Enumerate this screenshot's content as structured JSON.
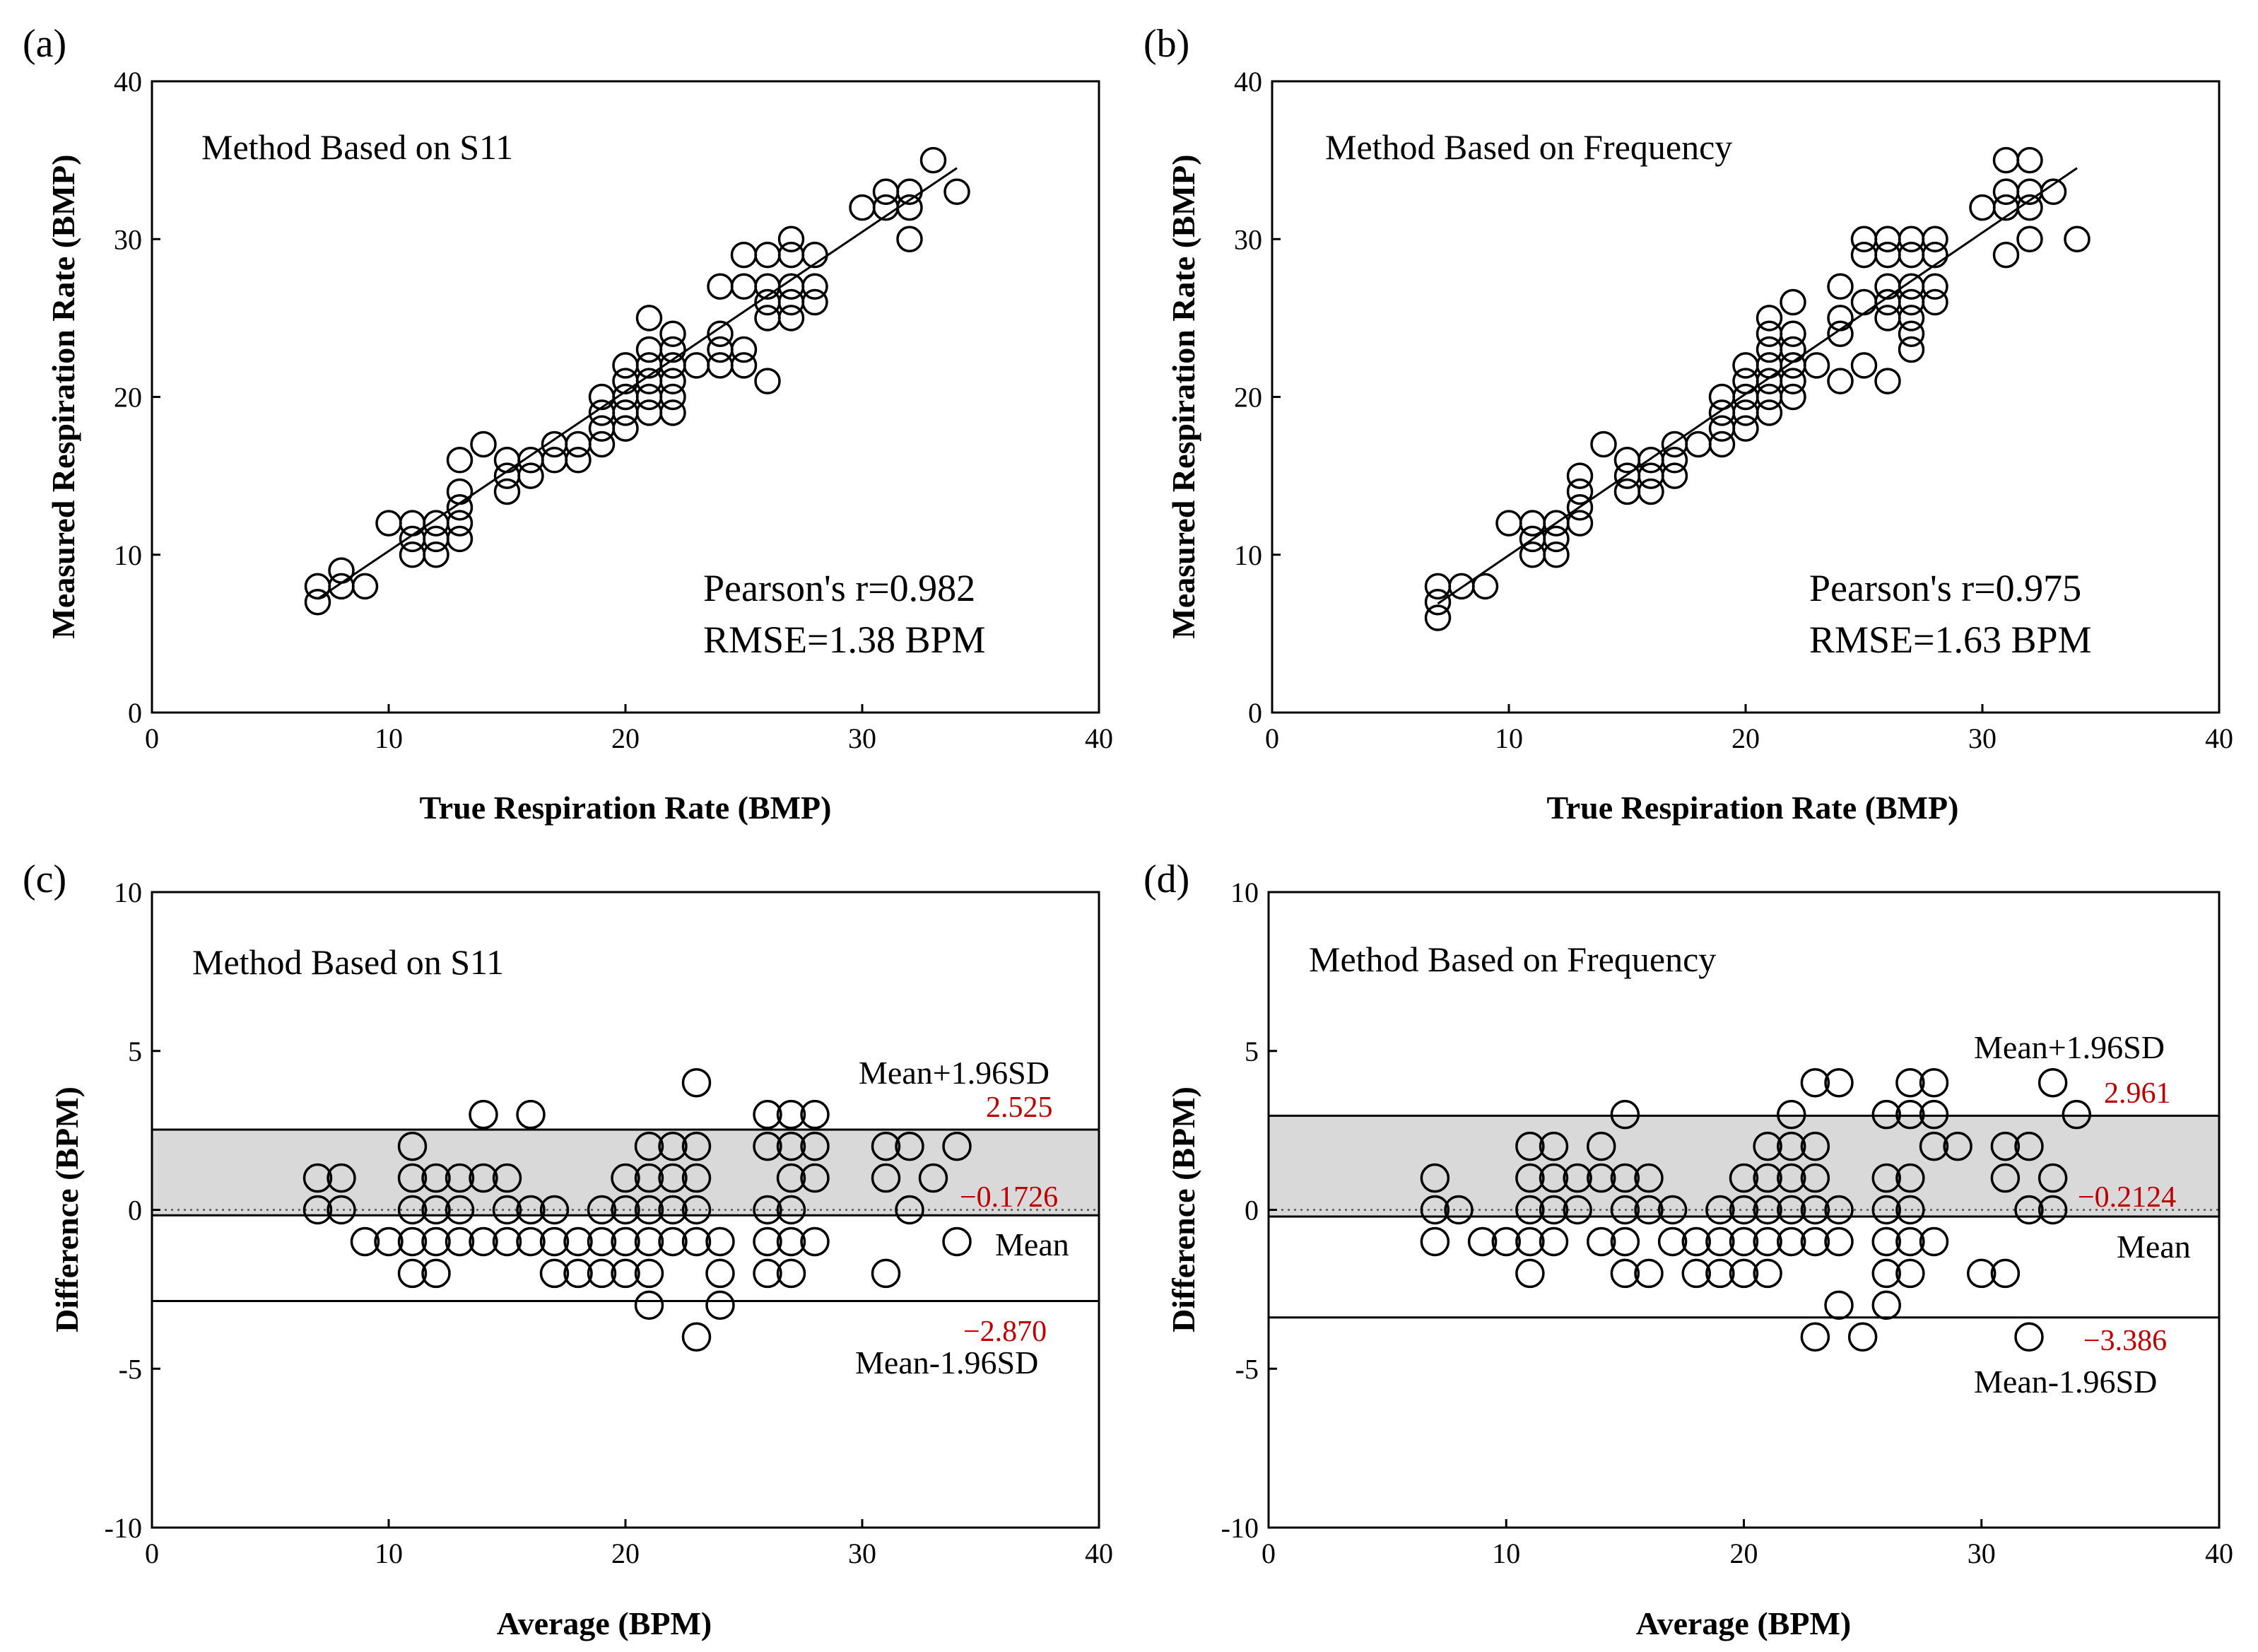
{
  "chart_data": [
    {
      "id": "a",
      "type": "scatter",
      "panel_label": "(a)",
      "title": "Method Based on S11",
      "xlabel": "True Respiration Rate (BMP)",
      "ylabel": "Measured Respiration Rate (BMP)",
      "xlim": [
        0,
        40
      ],
      "ylim": [
        0,
        40
      ],
      "xticks": [
        0,
        10,
        20,
        30,
        40
      ],
      "yticks": [
        0,
        10,
        20,
        30,
        40
      ],
      "stats": [
        "Pearson's r=0.982",
        "RMSE=1.38 BPM"
      ],
      "fit_line": [
        [
          7,
          7.2
        ],
        [
          34,
          34.5
        ]
      ],
      "points": [
        [
          7,
          8
        ],
        [
          7,
          7
        ],
        [
          8,
          9
        ],
        [
          8,
          8
        ],
        [
          9,
          8
        ],
        [
          10,
          12
        ],
        [
          11,
          12
        ],
        [
          11,
          11
        ],
        [
          11,
          10
        ],
        [
          12,
          12
        ],
        [
          12,
          11
        ],
        [
          12,
          10
        ],
        [
          13,
          16
        ],
        [
          13,
          14
        ],
        [
          13,
          13
        ],
        [
          13,
          12
        ],
        [
          13,
          11
        ],
        [
          14,
          17
        ],
        [
          15,
          16
        ],
        [
          15,
          15
        ],
        [
          15,
          14
        ],
        [
          16,
          16
        ],
        [
          16,
          15
        ],
        [
          17,
          17
        ],
        [
          17,
          16
        ],
        [
          18,
          17
        ],
        [
          18,
          16
        ],
        [
          19,
          20
        ],
        [
          19,
          19
        ],
        [
          19,
          18
        ],
        [
          19,
          17
        ],
        [
          20,
          22
        ],
        [
          20,
          21
        ],
        [
          20,
          20
        ],
        [
          20,
          19
        ],
        [
          20,
          18
        ],
        [
          21,
          25
        ],
        [
          21,
          23
        ],
        [
          21,
          22
        ],
        [
          21,
          21
        ],
        [
          21,
          20
        ],
        [
          21,
          19
        ],
        [
          22,
          24
        ],
        [
          22,
          23
        ],
        [
          22,
          22
        ],
        [
          22,
          21
        ],
        [
          22,
          20
        ],
        [
          22,
          19
        ],
        [
          23,
          22
        ],
        [
          24,
          27
        ],
        [
          24,
          24
        ],
        [
          24,
          23
        ],
        [
          24,
          22
        ],
        [
          25,
          29
        ],
        [
          25,
          27
        ],
        [
          25,
          23
        ],
        [
          25,
          22
        ],
        [
          26,
          29
        ],
        [
          26,
          27
        ],
        [
          26,
          26
        ],
        [
          26,
          25
        ],
        [
          26,
          21
        ],
        [
          27,
          30
        ],
        [
          27,
          29
        ],
        [
          27,
          27
        ],
        [
          27,
          26
        ],
        [
          27,
          25
        ],
        [
          28,
          29
        ],
        [
          28,
          27
        ],
        [
          28,
          26
        ],
        [
          30,
          32
        ],
        [
          31,
          33
        ],
        [
          31,
          32
        ],
        [
          32,
          33
        ],
        [
          32,
          32
        ],
        [
          32,
          30
        ],
        [
          33,
          35
        ],
        [
          34,
          33
        ]
      ]
    },
    {
      "id": "b",
      "type": "scatter",
      "panel_label": "(b)",
      "title": "Method Based on Frequency",
      "xlabel": "True Respiration Rate (BMP)",
      "ylabel": "Measured Respiration Rate (BMP)",
      "xlim": [
        0,
        40
      ],
      "ylim": [
        0,
        40
      ],
      "xticks": [
        0,
        10,
        20,
        30,
        40
      ],
      "yticks": [
        0,
        10,
        20,
        30,
        40
      ],
      "stats": [
        "Pearson's r=0.975",
        "RMSE=1.63 BPM"
      ],
      "fit_line": [
        [
          7,
          6.9
        ],
        [
          34,
          34.5
        ]
      ],
      "points": [
        [
          7,
          8
        ],
        [
          7,
          7
        ],
        [
          7,
          6
        ],
        [
          8,
          8
        ],
        [
          9,
          8
        ],
        [
          10,
          12
        ],
        [
          11,
          12
        ],
        [
          11,
          11
        ],
        [
          11,
          10
        ],
        [
          12,
          12
        ],
        [
          12,
          11
        ],
        [
          12,
          10
        ],
        [
          13,
          15
        ],
        [
          13,
          14
        ],
        [
          13,
          13
        ],
        [
          13,
          12
        ],
        [
          14,
          17
        ],
        [
          15,
          16
        ],
        [
          15,
          15
        ],
        [
          15,
          14
        ],
        [
          16,
          16
        ],
        [
          16,
          15
        ],
        [
          16,
          14
        ],
        [
          17,
          17
        ],
        [
          17,
          16
        ],
        [
          17,
          15
        ],
        [
          18,
          17
        ],
        [
          19,
          20
        ],
        [
          19,
          19
        ],
        [
          19,
          18
        ],
        [
          19,
          17
        ],
        [
          20,
          22
        ],
        [
          20,
          21
        ],
        [
          20,
          20
        ],
        [
          20,
          19
        ],
        [
          20,
          18
        ],
        [
          21,
          25
        ],
        [
          21,
          24
        ],
        [
          21,
          23
        ],
        [
          21,
          22
        ],
        [
          21,
          21
        ],
        [
          21,
          20
        ],
        [
          21,
          19
        ],
        [
          22,
          26
        ],
        [
          22,
          24
        ],
        [
          22,
          23
        ],
        [
          22,
          22
        ],
        [
          22,
          21
        ],
        [
          22,
          20
        ],
        [
          23,
          22
        ],
        [
          24,
          27
        ],
        [
          24,
          25
        ],
        [
          24,
          24
        ],
        [
          24,
          21
        ],
        [
          25,
          30
        ],
        [
          25,
          29
        ],
        [
          25,
          26
        ],
        [
          25,
          22
        ],
        [
          26,
          30
        ],
        [
          26,
          29
        ],
        [
          26,
          27
        ],
        [
          26,
          26
        ],
        [
          26,
          25
        ],
        [
          26,
          21
        ],
        [
          27,
          30
        ],
        [
          27,
          29
        ],
        [
          27,
          27
        ],
        [
          27,
          26
        ],
        [
          27,
          25
        ],
        [
          27,
          24
        ],
        [
          27,
          23
        ],
        [
          28,
          30
        ],
        [
          28,
          29
        ],
        [
          28,
          27
        ],
        [
          28,
          26
        ],
        [
          30,
          32
        ],
        [
          31,
          35
        ],
        [
          31,
          33
        ],
        [
          31,
          32
        ],
        [
          31,
          29
        ],
        [
          32,
          35
        ],
        [
          32,
          33
        ],
        [
          32,
          32
        ],
        [
          32,
          30
        ],
        [
          33,
          33
        ],
        [
          34,
          30
        ]
      ]
    },
    {
      "id": "c",
      "type": "scatter",
      "panel_label": "(c)",
      "title": "Method Based on S11",
      "xlabel": "Average (BPM)",
      "ylabel": "Difference (BPM)",
      "xlim": [
        0,
        40
      ],
      "ylim": [
        -10,
        10
      ],
      "xticks": [
        0,
        10,
        20,
        30,
        40
      ],
      "yticks": [
        -10,
        -5,
        0,
        5,
        10
      ],
      "upper_loa": 2.525,
      "mean": -0.1726,
      "lower_loa": -2.87,
      "upper_label": "Mean+1.96SD",
      "mean_label": "Mean",
      "lower_label": "Mean-1.96SD",
      "upper_value_label": "2.525",
      "mean_value_label": "−0.1726",
      "lower_value_label": "−2.870",
      "points": [
        [
          7,
          1
        ],
        [
          7,
          0
        ],
        [
          8,
          1
        ],
        [
          8,
          0
        ],
        [
          9,
          -1
        ],
        [
          10,
          -1
        ],
        [
          11,
          2
        ],
        [
          11,
          1
        ],
        [
          11,
          0
        ],
        [
          11,
          -1
        ],
        [
          11,
          -2
        ],
        [
          12,
          1
        ],
        [
          12,
          0
        ],
        [
          12,
          -1
        ],
        [
          12,
          -2
        ],
        [
          13,
          1
        ],
        [
          13,
          0
        ],
        [
          13,
          -1
        ],
        [
          14,
          3
        ],
        [
          14,
          1
        ],
        [
          14,
          -1
        ],
        [
          15,
          1
        ],
        [
          15,
          0
        ],
        [
          15,
          -1
        ],
        [
          16,
          3
        ],
        [
          16,
          0
        ],
        [
          16,
          -1
        ],
        [
          17,
          0
        ],
        [
          17,
          -1
        ],
        [
          17,
          -2
        ],
        [
          18,
          -1
        ],
        [
          18,
          -2
        ],
        [
          19,
          0
        ],
        [
          19,
          -1
        ],
        [
          19,
          -2
        ],
        [
          20,
          1
        ],
        [
          20,
          0
        ],
        [
          20,
          -1
        ],
        [
          20,
          -2
        ],
        [
          21,
          2
        ],
        [
          21,
          1
        ],
        [
          21,
          0
        ],
        [
          21,
          -1
        ],
        [
          21,
          -2
        ],
        [
          21,
          -3
        ],
        [
          22,
          2
        ],
        [
          22,
          1
        ],
        [
          22,
          0
        ],
        [
          22,
          -1
        ],
        [
          23,
          4
        ],
        [
          23,
          2
        ],
        [
          23,
          1
        ],
        [
          23,
          0
        ],
        [
          23,
          -1
        ],
        [
          23,
          -4
        ],
        [
          24,
          -1
        ],
        [
          24,
          -2
        ],
        [
          24,
          -3
        ],
        [
          26,
          3
        ],
        [
          26,
          2
        ],
        [
          26,
          0
        ],
        [
          26,
          -1
        ],
        [
          26,
          -2
        ],
        [
          27,
          3
        ],
        [
          27,
          2
        ],
        [
          27,
          1
        ],
        [
          27,
          0
        ],
        [
          27,
          -1
        ],
        [
          27,
          -2
        ],
        [
          28,
          3
        ],
        [
          28,
          2
        ],
        [
          28,
          1
        ],
        [
          28,
          -1
        ],
        [
          31,
          2
        ],
        [
          31,
          1
        ],
        [
          31,
          -2
        ],
        [
          32,
          2
        ],
        [
          32,
          0
        ],
        [
          33,
          1
        ],
        [
          34,
          2
        ],
        [
          34,
          -1
        ]
      ]
    },
    {
      "id": "d",
      "type": "scatter",
      "panel_label": "(d)",
      "title": "Method Based on Frequency",
      "xlabel": "Average (BPM)",
      "ylabel": "Difference (BPM)",
      "xlim": [
        0,
        40
      ],
      "ylim": [
        -10,
        10
      ],
      "xticks": [
        0,
        10,
        20,
        30,
        40
      ],
      "yticks": [
        -10,
        -5,
        0,
        5,
        10
      ],
      "upper_loa": 2.961,
      "mean": -0.2124,
      "lower_loa": -3.386,
      "upper_label": "Mean+1.96SD",
      "mean_label": "Mean",
      "lower_label": "Mean-1.96SD",
      "upper_value_label": "2.961",
      "mean_value_label": "−0.2124",
      "lower_value_label": "−3.386",
      "points": [
        [
          7,
          1
        ],
        [
          7,
          0
        ],
        [
          7,
          -1
        ],
        [
          8,
          0
        ],
        [
          9,
          -1
        ],
        [
          10,
          -1
        ],
        [
          11,
          2
        ],
        [
          11,
          1
        ],
        [
          11,
          0
        ],
        [
          11,
          -1
        ],
        [
          11,
          -2
        ],
        [
          12,
          2
        ],
        [
          12,
          1
        ],
        [
          12,
          0
        ],
        [
          12,
          -1
        ],
        [
          13,
          1
        ],
        [
          13,
          0
        ],
        [
          14,
          2
        ],
        [
          14,
          1
        ],
        [
          14,
          -1
        ],
        [
          15,
          3
        ],
        [
          15,
          1
        ],
        [
          15,
          0
        ],
        [
          15,
          -1
        ],
        [
          15,
          -2
        ],
        [
          16,
          1
        ],
        [
          16,
          0
        ],
        [
          16,
          -2
        ],
        [
          17,
          0
        ],
        [
          17,
          -1
        ],
        [
          18,
          -1
        ],
        [
          18,
          -2
        ],
        [
          19,
          0
        ],
        [
          19,
          -1
        ],
        [
          19,
          -2
        ],
        [
          20,
          1
        ],
        [
          20,
          0
        ],
        [
          20,
          -1
        ],
        [
          20,
          -2
        ],
        [
          21,
          2
        ],
        [
          21,
          1
        ],
        [
          21,
          0
        ],
        [
          21,
          -1
        ],
        [
          21,
          -2
        ],
        [
          22,
          3
        ],
        [
          22,
          2
        ],
        [
          22,
          1
        ],
        [
          22,
          0
        ],
        [
          22,
          -1
        ],
        [
          23,
          4
        ],
        [
          23,
          2
        ],
        [
          23,
          1
        ],
        [
          23,
          0
        ],
        [
          23,
          -1
        ],
        [
          23,
          -4
        ],
        [
          24,
          4
        ],
        [
          24,
          0
        ],
        [
          24,
          -1
        ],
        [
          24,
          -3
        ],
        [
          25,
          -4
        ],
        [
          26,
          3
        ],
        [
          26,
          1
        ],
        [
          26,
          0
        ],
        [
          26,
          -1
        ],
        [
          26,
          -2
        ],
        [
          26,
          -3
        ],
        [
          27,
          4
        ],
        [
          27,
          3
        ],
        [
          27,
          1
        ],
        [
          27,
          0
        ],
        [
          27,
          -1
        ],
        [
          27,
          -2
        ],
        [
          28,
          4
        ],
        [
          28,
          3
        ],
        [
          28,
          2
        ],
        [
          28,
          -1
        ],
        [
          29,
          2
        ],
        [
          30,
          -2
        ],
        [
          31,
          2
        ],
        [
          31,
          1
        ],
        [
          31,
          -2
        ],
        [
          32,
          2
        ],
        [
          32,
          0
        ],
        [
          32,
          -4
        ],
        [
          33,
          4
        ],
        [
          33,
          1
        ],
        [
          33,
          0
        ],
        [
          34,
          3
        ]
      ]
    }
  ]
}
